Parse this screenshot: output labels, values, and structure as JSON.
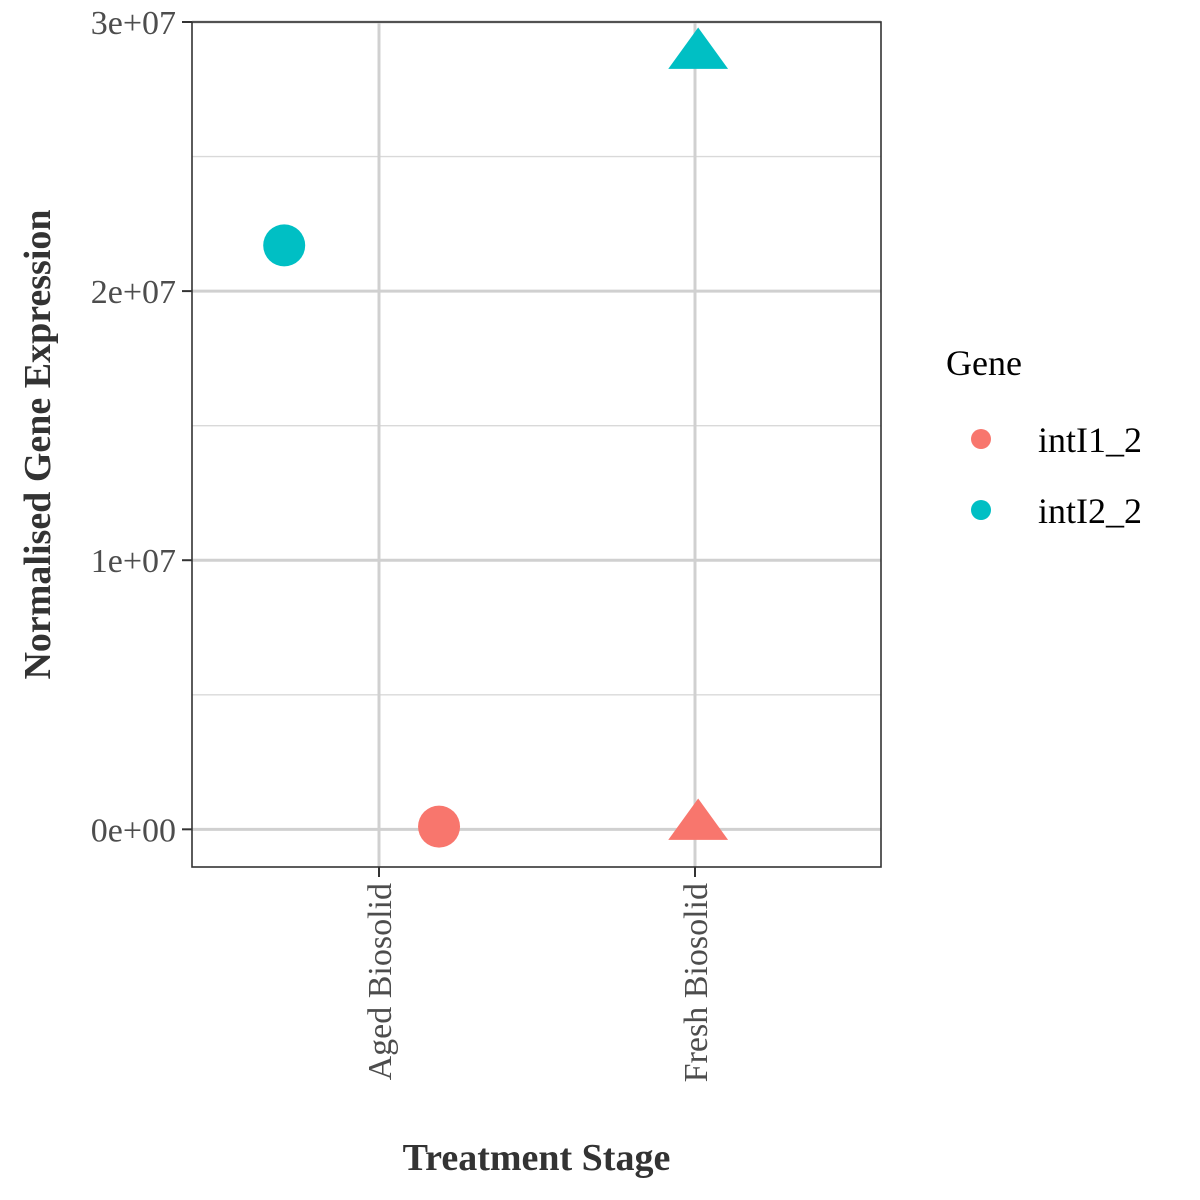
{
  "chart_data": {
    "type": "scatter",
    "xlabel": "Treatment Stage",
    "ylabel": "Normalised Gene Expression",
    "categories": [
      "Aged Biosolid",
      "Fresh Biosolid"
    ],
    "ylim": [
      -1400000,
      30000000
    ],
    "yticks": [
      {
        "value": 0,
        "label": "0e+00"
      },
      {
        "value": 10000000,
        "label": "1e+07"
      },
      {
        "value": 20000000,
        "label": "2e+07"
      },
      {
        "value": 30000000,
        "label": "3e+07"
      }
    ],
    "minor_yticks": [
      5000000,
      15000000,
      25000000
    ],
    "grid": true,
    "legend": {
      "title": "Gene",
      "position": "right",
      "entries": [
        {
          "label": "intI1_2",
          "color": "#F8766D"
        },
        {
          "label": "intI2_2",
          "color": "#00BFC4"
        }
      ]
    },
    "series": [
      {
        "name": "intI1_2",
        "color": "#F8766D",
        "points": [
          {
            "category": "Aged Biosolid",
            "jitter": 0.19,
            "y": 100000,
            "shape": "circle"
          },
          {
            "category": "Fresh Biosolid",
            "jitter": 0.01,
            "y": 250000,
            "shape": "triangle"
          }
        ]
      },
      {
        "name": "intI2_2",
        "color": "#00BFC4",
        "points": [
          {
            "category": "Aged Biosolid",
            "jitter": -0.3,
            "y": 21700000,
            "shape": "circle"
          },
          {
            "category": "Fresh Biosolid",
            "jitter": 0.01,
            "y": 28900000,
            "shape": "triangle"
          }
        ]
      }
    ]
  }
}
